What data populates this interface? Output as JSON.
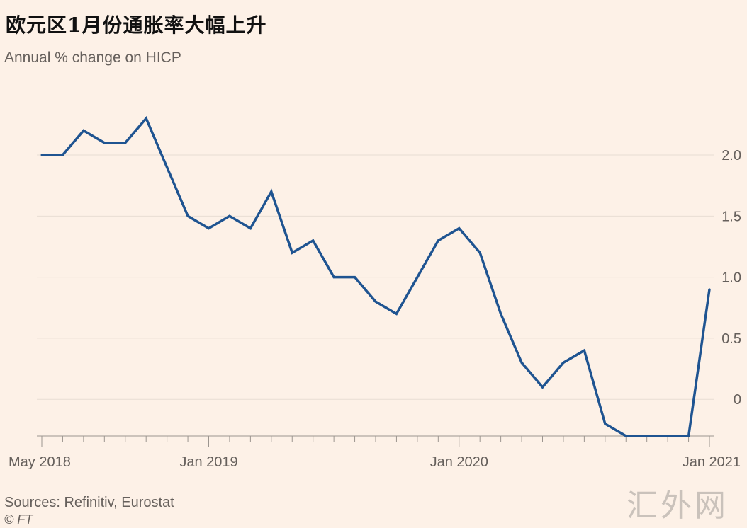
{
  "title": "欧元区1月份通胀率大幅上升",
  "subtitle": "Annual % change on HICP",
  "source": "Sources: Refinitiv, Eurostat",
  "credit": "© FT",
  "watermark": "汇外网",
  "colors": {
    "background": "#fdf1e7",
    "line": "#1f5491",
    "grid": "#e8ddd3",
    "text": "#66605c"
  },
  "chart_data": {
    "type": "line",
    "title": "欧元区1月份通胀率大幅上升",
    "subtitle": "Annual % change on HICP",
    "xlabel": "",
    "ylabel": "",
    "ylim": [
      -0.3,
      2.4
    ],
    "y_axis_position": "right",
    "grid": true,
    "yticks": [
      0,
      0.5,
      1.0,
      1.5,
      2.0
    ],
    "ytick_labels": [
      "0",
      "0.5",
      "1.0",
      "1.5",
      "2.0"
    ],
    "xticks": [
      {
        "label": "May 2018",
        "index": 0
      },
      {
        "label": "Jan 2019",
        "index": 8
      },
      {
        "label": "Jan 2020",
        "index": 20
      },
      {
        "label": "Jan 2021",
        "index": 32
      }
    ],
    "x": [
      "2018-05",
      "2018-06",
      "2018-07",
      "2018-08",
      "2018-09",
      "2018-10",
      "2018-11",
      "2018-12",
      "2019-01",
      "2019-02",
      "2019-03",
      "2019-04",
      "2019-05",
      "2019-06",
      "2019-07",
      "2019-08",
      "2019-09",
      "2019-10",
      "2019-11",
      "2019-12",
      "2020-01",
      "2020-02",
      "2020-03",
      "2020-04",
      "2020-05",
      "2020-06",
      "2020-07",
      "2020-08",
      "2020-09",
      "2020-10",
      "2020-11",
      "2020-12",
      "2021-01"
    ],
    "series": [
      {
        "values": [
          2.0,
          2.0,
          2.2,
          2.1,
          2.1,
          2.3,
          1.9,
          1.5,
          1.4,
          1.5,
          1.4,
          1.7,
          1.2,
          1.3,
          1.0,
          1.0,
          0.8,
          0.7,
          1.0,
          1.3,
          1.4,
          1.2,
          0.7,
          0.3,
          0.1,
          0.3,
          0.4,
          -0.2,
          -0.3,
          -0.3,
          -0.3,
          -0.3,
          0.9
        ]
      }
    ]
  }
}
